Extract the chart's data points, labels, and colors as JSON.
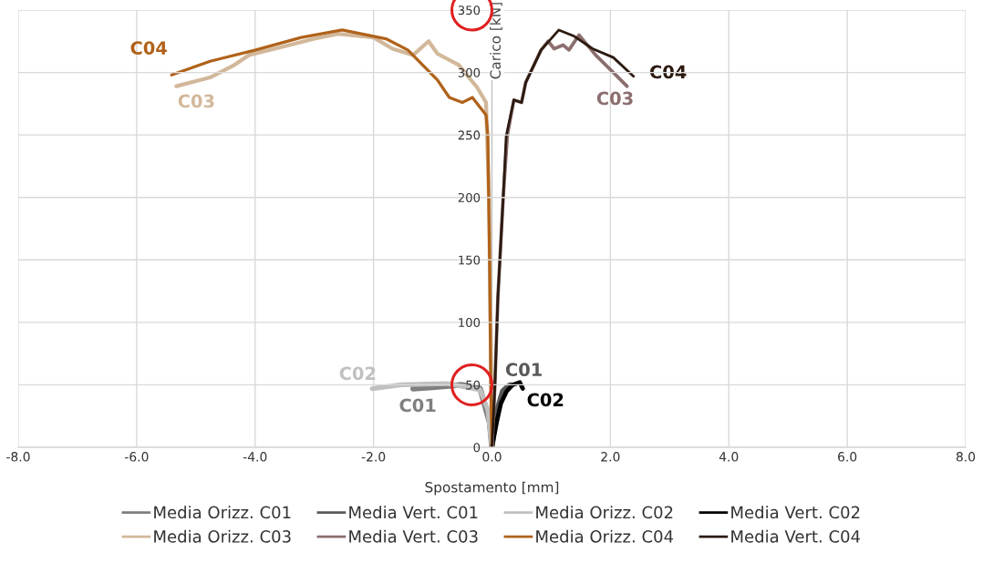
{
  "chart_data": {
    "type": "line",
    "xlabel": "Spostamento [mm]",
    "ylabel": "Carico [kN]",
    "xlim": [
      -8,
      8
    ],
    "ylim": [
      0,
      350
    ],
    "xticks": [
      {
        "value": -8,
        "label": "-8.0"
      },
      {
        "value": -6,
        "label": "-6.0"
      },
      {
        "value": -4,
        "label": "-4.0"
      },
      {
        "value": -2,
        "label": "-2.0"
      },
      {
        "value": 0,
        "label": "0.0"
      },
      {
        "value": 2,
        "label": "2.0"
      },
      {
        "value": 4,
        "label": "4.0"
      },
      {
        "value": 6,
        "label": "6.0"
      },
      {
        "value": 8,
        "label": "8.0"
      }
    ],
    "yticks": [
      0,
      50,
      100,
      150,
      200,
      250,
      300,
      350
    ],
    "grid": true,
    "legend": "bottom",
    "marker": "none",
    "line_style": "solid",
    "series": [
      {
        "name": "Media Orizz. C01",
        "color": "#7f7f7f",
        "x": [
          -1.33,
          -1.0,
          -0.5,
          -0.2,
          -0.04,
          0
        ],
        "values": [
          47,
          48,
          50,
          47,
          20,
          0
        ]
      },
      {
        "name": "Media Vert. C01",
        "color": "#595959",
        "x": [
          0,
          0.05,
          0.1,
          0.18,
          0.25,
          0.31
        ],
        "values": [
          0,
          18,
          32,
          45,
          48,
          50
        ]
      },
      {
        "name": "Media Orizz. C02",
        "color": "#c0c0c0",
        "x": [
          -2.02,
          -1.53,
          -0.76,
          -0.2,
          -0.07,
          0
        ],
        "values": [
          47,
          50,
          51,
          46,
          30,
          0
        ]
      },
      {
        "name": "Media Vert. C02",
        "color": "#000000",
        "x": [
          0,
          0.08,
          0.15,
          0.25,
          0.35,
          0.47,
          0.52
        ],
        "values": [
          0,
          20,
          35,
          45,
          50,
          52,
          47
        ]
      },
      {
        "name": "Media Orizz. C03",
        "color": "#d2b89a",
        "x": [
          -5.33,
          -4.76,
          -4.35,
          -4.1,
          -3.5,
          -3.0,
          -2.6,
          -2.0,
          -1.68,
          -1.33,
          -1.07,
          -0.92,
          -0.56,
          -0.25,
          -0.1,
          -0.05,
          -0.02,
          0
        ],
        "values": [
          289,
          296,
          306,
          314,
          321,
          327,
          331,
          328,
          319,
          314,
          325,
          315,
          306,
          288,
          276,
          200,
          80,
          0
        ]
      },
      {
        "name": "Media Vert. C03",
        "color": "#8c6e6e",
        "x": [
          0,
          0.05,
          0.1,
          0.19,
          0.26,
          0.37,
          0.5,
          0.57,
          0.83,
          0.95,
          1.05,
          1.2,
          1.3,
          1.47,
          1.75,
          2.05,
          2.28
        ],
        "values": [
          0,
          50,
          120,
          200,
          250,
          278,
          276,
          292,
          318,
          325,
          319,
          322,
          318,
          330,
          314,
          300,
          289
        ]
      },
      {
        "name": "Media Orizz. C04",
        "color": "#b0621a",
        "x": [
          -5.41,
          -4.76,
          -3.99,
          -3.22,
          -2.53,
          -1.79,
          -1.42,
          -0.92,
          -0.72,
          -0.5,
          -0.33,
          -0.1,
          -0.07,
          -0.04,
          -0.02,
          0
        ],
        "values": [
          298,
          309,
          318,
          328,
          334,
          327,
          318,
          294,
          280,
          276,
          280,
          266,
          250,
          150,
          50,
          0
        ]
      },
      {
        "name": "Media Vert. C04",
        "color": "#2b1a10",
        "x": [
          0,
          0.05,
          0.1,
          0.19,
          0.24,
          0.37,
          0.5,
          0.57,
          0.83,
          1.13,
          1.39,
          1.7,
          2.05,
          2.39
        ],
        "values": [
          0,
          50,
          120,
          200,
          249,
          278,
          276,
          292,
          318,
          334,
          329,
          319,
          312,
          297
        ]
      }
    ],
    "annotations": [
      "C01",
      "C01",
      "C02",
      "C02",
      "C03",
      "C03",
      "C04",
      "C04"
    ]
  }
}
